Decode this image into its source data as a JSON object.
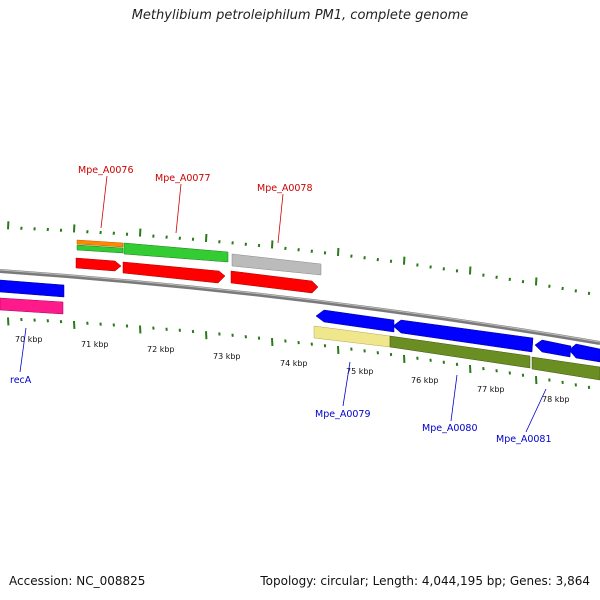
{
  "title": "Methylibium petroleiphilum PM1, complete genome",
  "footer": {
    "accession": "Accession: NC_008825",
    "summary": "Topology: circular; Length: 4,044,195 bp; Genes: 3,864"
  },
  "colors": {
    "forward_label": "#cc0000",
    "reverse_label": "#0000cc",
    "backbone": "#888888",
    "tick": "#2a7a1a",
    "cds_red": "#ff0000",
    "cds_blue": "#0000ff",
    "cds_green": "#33cc33",
    "cds_orange": "#ff8800",
    "cds_gray": "#bbbbbb",
    "cds_pink": "#ff1a8c",
    "cds_olive": "#6b8e23",
    "cds_khaki": "#f0e68c"
  },
  "scale": {
    "kbp_labels": [
      "70 kbp",
      "71 kbp",
      "72 kbp",
      "73 kbp",
      "74 kbp",
      "75 kbp",
      "76 kbp",
      "77 kbp",
      "78 kbp"
    ]
  },
  "genes": {
    "forward": [
      {
        "label": "Mpe_A0076"
      },
      {
        "label": "Mpe_A0077"
      },
      {
        "label": "Mpe_A0078"
      }
    ],
    "reverse": [
      {
        "label": "recA"
      },
      {
        "label": "Mpe_A0079"
      },
      {
        "label": "Mpe_A0080"
      },
      {
        "label": "Mpe_A0081"
      }
    ]
  }
}
